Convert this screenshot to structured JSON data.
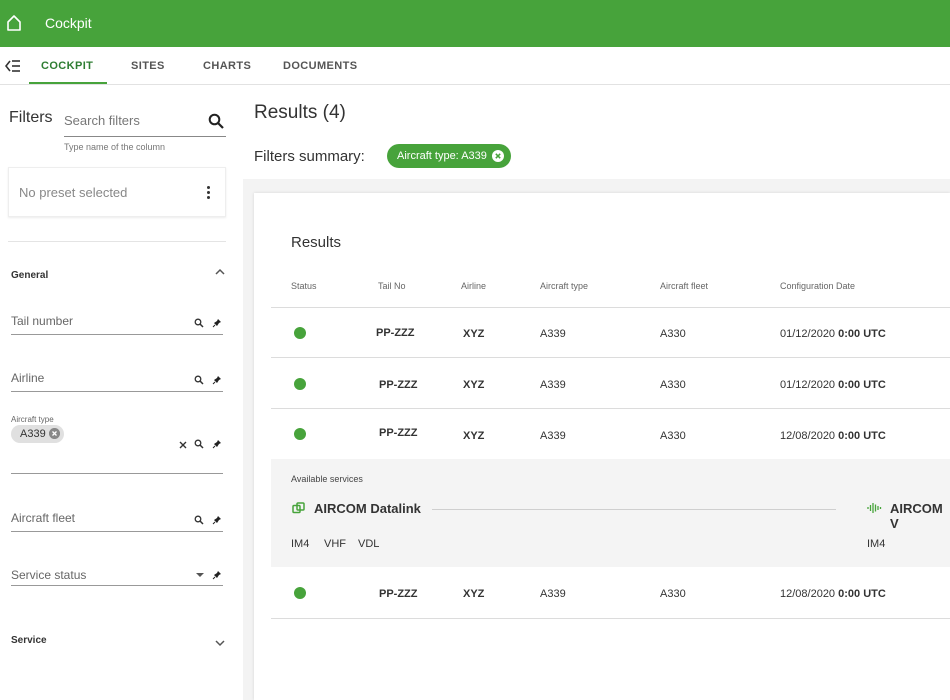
{
  "app": {
    "title": "Cockpit"
  },
  "tabs": [
    "COCKPIT",
    "SITES",
    "CHARTS",
    "DOCUMENTS"
  ],
  "sidebar": {
    "title": "Filters",
    "search_placeholder": "Search filters",
    "search_hint": "Type name of the column",
    "preset_text": "No preset selected",
    "general_title": "General",
    "fields": {
      "tail_number": "Tail number",
      "airline": "Airline",
      "aircraft_type_label": "Aircraft type",
      "aircraft_type_chip": "A339",
      "aircraft_fleet": "Aircraft fleet",
      "service_status": "Service status"
    },
    "service_title": "Service"
  },
  "main": {
    "heading": "Results (4)",
    "summary_label": "Filters summary:",
    "summary_chip": "Aircraft type: A339",
    "card_title": "Results",
    "columns": [
      "Status",
      "Tail No",
      "Airline",
      "Aircraft type",
      "Aircraft fleet",
      "Configuration Date"
    ],
    "rows": [
      {
        "status": "green",
        "tail": "PP-ZZZ",
        "airline": "XYZ",
        "type": "A339",
        "fleet": "A330",
        "date": "01/12/2020",
        "time": "0:00 UTC"
      },
      {
        "status": "green",
        "tail": "PP-ZZZ",
        "airline": "XYZ",
        "type": "A339",
        "fleet": "A330",
        "date": "01/12/2020",
        "time": "0:00 UTC"
      },
      {
        "status": "green",
        "tail": "PP-ZZZ",
        "airline": "XYZ",
        "type": "A339",
        "fleet": "A330",
        "date": "12/08/2020",
        "time": "0:00 UTC"
      },
      {
        "status": "green",
        "tail": "PP-ZZZ",
        "airline": "XYZ",
        "type": "A339",
        "fleet": "A330",
        "date": "12/08/2020",
        "time": "0:00 UTC"
      }
    ],
    "expanded": {
      "label": "Available services",
      "service1": {
        "name": "AIRCOM Datalink",
        "protocols": [
          "IM4",
          "VHF",
          "VDL"
        ]
      },
      "service2": {
        "name": "AIRCOM V",
        "protocols": [
          "IM4"
        ]
      }
    }
  },
  "colors": {
    "brand_green": "#47a33b",
    "status_ok": "#47a33b"
  },
  "icons": [
    "home-icon",
    "collapse-menu-icon",
    "search-icon",
    "kebab-menu-icon",
    "chevron-up-icon",
    "chevron-down-icon",
    "pin-icon",
    "close-icon",
    "datalink-icon",
    "voice-wave-icon"
  ]
}
